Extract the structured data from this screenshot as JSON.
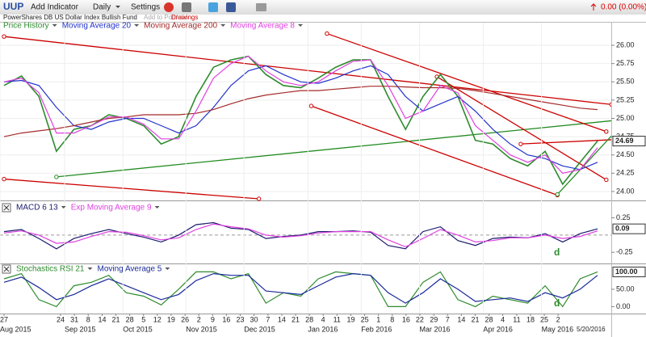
{
  "header": {
    "symbol": "UUP",
    "add_indicator": "Add Indicator",
    "interval": "Daily",
    "settings": "Settings",
    "change": "0.00 (0.00%)",
    "name": "PowerShares DB US Dollar Index Bullish Fund",
    "add_to_portfolio": "Add to Portfolio",
    "drawings": "Drawings"
  },
  "chart_data": [
    {
      "type": "line",
      "xlim": [
        0,
        34
      ],
      "ylim": [
        23.9,
        26.31
      ],
      "grid": true,
      "yticks": [
        {
          "value": 26,
          "label": "26.00"
        },
        {
          "value": 25.75,
          "label": "25.75"
        },
        {
          "value": 25.5,
          "label": "25.50"
        },
        {
          "value": 25.25,
          "label": "25.25"
        },
        {
          "value": 25,
          "label": "25.00"
        },
        {
          "value": 24.75,
          "label": "24.75"
        },
        {
          "value": 24.5,
          "label": "24.50"
        },
        {
          "value": 24.25,
          "label": "24.25"
        },
        {
          "value": 24,
          "label": "24.00"
        }
      ],
      "last_value": 24.69,
      "series": [
        {
          "name": "Price History",
          "color": "#2e8b2e",
          "values": [
            25.45,
            25.58,
            25.3,
            24.55,
            24.85,
            24.9,
            25.05,
            25.0,
            24.9,
            24.65,
            24.75,
            25.3,
            25.7,
            25.8,
            25.85,
            25.6,
            25.45,
            25.42,
            25.55,
            25.7,
            25.8,
            25.8,
            25.3,
            24.85,
            25.3,
            25.6,
            25.3,
            24.7,
            24.65,
            24.45,
            24.35,
            24.55,
            24.1,
            24.4,
            24.69
          ]
        },
        {
          "name": "Moving Average 20",
          "color": "#2233cc",
          "values": [
            25.5,
            25.52,
            25.45,
            25.15,
            24.9,
            24.85,
            24.95,
            25.0,
            25.0,
            24.9,
            24.8,
            24.9,
            25.15,
            25.45,
            25.65,
            25.72,
            25.6,
            25.5,
            25.48,
            25.55,
            25.65,
            25.72,
            25.6,
            25.3,
            25.1,
            25.2,
            25.3,
            25.1,
            24.85,
            24.65,
            24.5,
            24.45,
            24.35,
            24.3,
            24.4
          ]
        },
        {
          "name": "Moving Average 200",
          "color": "#a52a2a",
          "values": [
            24.75,
            24.8,
            24.83,
            24.86,
            24.9,
            24.95,
            25.0,
            25.02,
            25.05,
            25.05,
            25.05,
            25.07,
            25.12,
            25.2,
            25.27,
            25.32,
            25.35,
            25.38,
            25.38,
            25.4,
            25.42,
            25.44,
            25.44,
            25.43,
            25.42,
            25.42,
            25.41,
            25.38,
            25.34,
            25.3,
            25.26,
            25.22,
            25.18,
            25.14,
            25.12
          ]
        },
        {
          "name": "Moving Average 8",
          "color": "#e040e0",
          "values": [
            25.5,
            25.55,
            25.35,
            24.8,
            24.8,
            24.9,
            25.02,
            25.02,
            24.92,
            24.72,
            24.72,
            25.1,
            25.55,
            25.75,
            25.85,
            25.65,
            25.5,
            25.45,
            25.5,
            25.65,
            25.78,
            25.8,
            25.45,
            25.0,
            25.1,
            25.45,
            25.35,
            24.9,
            24.7,
            24.5,
            24.4,
            24.5,
            24.25,
            24.3,
            24.6
          ]
        }
      ],
      "drawings": [
        {
          "color": "#cc0000",
          "points": [
            [
              0,
              26.12
            ],
            [
              34.8,
              25.19
            ]
          ]
        },
        {
          "color": "#cc0000",
          "points": [
            [
              0,
              24.17
            ],
            [
              14.6,
              23.9
            ]
          ]
        },
        {
          "color": "#228b22",
          "points": [
            [
              3.0,
              24.2
            ],
            [
              35.3,
              24.98
            ]
          ]
        },
        {
          "color": "#cc0000",
          "points": [
            [
              18.5,
              26.16
            ],
            [
              34.5,
              24.82
            ]
          ]
        },
        {
          "color": "#cc0000",
          "points": [
            [
              17.6,
              25.17
            ],
            [
              31.7,
              23.95
            ]
          ]
        },
        {
          "color": "#cc0000",
          "points": [
            [
              24.8,
              25.57
            ],
            [
              34.5,
              24.16
            ]
          ]
        },
        {
          "color": "#cc0000",
          "points": [
            [
              29.6,
              24.65
            ],
            [
              35.0,
              24.71
            ]
          ]
        },
        {
          "color": "#228b22",
          "points": [
            [
              31.7,
              23.96
            ],
            [
              35.3,
              24.89
            ]
          ]
        }
      ]
    },
    {
      "type": "line",
      "xlim": [
        0,
        34
      ],
      "ylim": [
        -0.4,
        0.42
      ],
      "yticks": [
        0.25,
        -0.25
      ],
      "reference_line": 0,
      "last_value": 0.09,
      "annotation": "d",
      "series": [
        {
          "name": "MACD 6 13",
          "color": "#1a1a6e",
          "values": [
            0.05,
            0.08,
            -0.05,
            -0.2,
            -0.05,
            0.02,
            0.08,
            0.02,
            -0.03,
            -0.1,
            0.0,
            0.15,
            0.18,
            0.1,
            0.08,
            -0.05,
            -0.02,
            0.0,
            0.05,
            0.05,
            0.06,
            0.04,
            -0.15,
            -0.2,
            0.05,
            0.12,
            -0.08,
            -0.15,
            -0.05,
            -0.03,
            -0.04,
            0.02,
            -0.1,
            0.02,
            0.09
          ]
        },
        {
          "name": "Exp Moving Average 9",
          "color": "#e040e0",
          "values": [
            0.03,
            0.06,
            0.0,
            -0.12,
            -0.1,
            -0.02,
            0.05,
            0.04,
            -0.01,
            -0.07,
            -0.04,
            0.08,
            0.16,
            0.12,
            0.09,
            0.0,
            -0.03,
            -0.01,
            0.03,
            0.05,
            0.05,
            0.05,
            -0.07,
            -0.17,
            -0.05,
            0.08,
            0.0,
            -0.1,
            -0.08,
            -0.04,
            -0.04,
            0.0,
            -0.05,
            -0.02,
            0.06
          ]
        }
      ]
    },
    {
      "type": "line",
      "xlim": [
        0,
        34
      ],
      "ylim": [
        -20,
        115
      ],
      "yticks": [
        {
          "value": 50,
          "label": "50.00"
        },
        {
          "value": 0,
          "label": "0.00"
        }
      ],
      "last_value": {
        "value": 100,
        "label": "100.00"
      },
      "annotation": "d",
      "series": [
        {
          "name": "Stochastics RSI 21",
          "color": "#2e8b2e",
          "values": [
            80,
            95,
            20,
            0,
            60,
            70,
            90,
            40,
            30,
            5,
            50,
            100,
            100,
            80,
            95,
            10,
            40,
            30,
            80,
            100,
            95,
            90,
            0,
            0,
            70,
            100,
            20,
            0,
            30,
            20,
            10,
            60,
            0,
            80,
            100
          ]
        },
        {
          "name": "Moving Average 5",
          "color": "#1a2a99",
          "values": [
            70,
            85,
            55,
            20,
            35,
            60,
            80,
            60,
            40,
            20,
            35,
            75,
            95,
            90,
            90,
            45,
            40,
            35,
            60,
            85,
            95,
            90,
            40,
            10,
            40,
            80,
            50,
            15,
            20,
            25,
            15,
            40,
            25,
            50,
            90
          ]
        }
      ],
      "xticks": [
        {
          "value": 0,
          "label": "27"
        },
        {
          "value": 3.24,
          "label": "24"
        },
        {
          "value": 4.03,
          "label": "31"
        },
        {
          "value": 4.82,
          "label": "8"
        },
        {
          "value": 5.62,
          "label": "14"
        },
        {
          "value": 6.41,
          "label": "21"
        },
        {
          "value": 7.2,
          "label": "28"
        },
        {
          "value": 7.99,
          "label": "5"
        },
        {
          "value": 8.78,
          "label": "12"
        },
        {
          "value": 9.57,
          "label": "19"
        },
        {
          "value": 10.37,
          "label": "26"
        },
        {
          "value": 11.16,
          "label": "2"
        },
        {
          "value": 11.95,
          "label": "9"
        },
        {
          "value": 12.74,
          "label": "16"
        },
        {
          "value": 13.53,
          "label": "23"
        },
        {
          "value": 14.32,
          "label": "30"
        },
        {
          "value": 15.12,
          "label": "7"
        },
        {
          "value": 15.91,
          "label": "14"
        },
        {
          "value": 16.7,
          "label": "21"
        },
        {
          "value": 17.49,
          "label": "28"
        },
        {
          "value": 18.28,
          "label": "4"
        },
        {
          "value": 19.07,
          "label": "11"
        },
        {
          "value": 19.87,
          "label": "19"
        },
        {
          "value": 20.66,
          "label": "25"
        },
        {
          "value": 21.45,
          "label": "1"
        },
        {
          "value": 22.24,
          "label": "8"
        },
        {
          "value": 23.03,
          "label": "16"
        },
        {
          "value": 23.82,
          "label": "22"
        },
        {
          "value": 24.62,
          "label": "29"
        },
        {
          "value": 25.41,
          "label": "7"
        },
        {
          "value": 26.2,
          "label": "14"
        },
        {
          "value": 26.99,
          "label": "21"
        },
        {
          "value": 27.78,
          "label": "28"
        },
        {
          "value": 28.57,
          "label": "4"
        },
        {
          "value": 29.37,
          "label": "11"
        },
        {
          "value": 30.16,
          "label": "18"
        },
        {
          "value": 30.95,
          "label": "25"
        },
        {
          "value": 31.74,
          "label": "2"
        }
      ],
      "month_ticks": [
        {
          "value": -0.23,
          "label": "Aug 2015"
        },
        {
          "value": 3.47,
          "label": "Sep 2015"
        },
        {
          "value": 6.81,
          "label": "Oct 2015"
        },
        {
          "value": 10.42,
          "label": "Nov 2015"
        },
        {
          "value": 13.75,
          "label": "Dec 2015"
        },
        {
          "value": 17.41,
          "label": "Jan 2016"
        },
        {
          "value": 20.46,
          "label": "Feb 2016"
        },
        {
          "value": 23.8,
          "label": "Mar 2016"
        },
        {
          "value": 27.45,
          "label": "Apr 2016"
        },
        {
          "value": 30.79,
          "label": "May 2016"
        }
      ],
      "end_date": "5/20/2016"
    }
  ]
}
